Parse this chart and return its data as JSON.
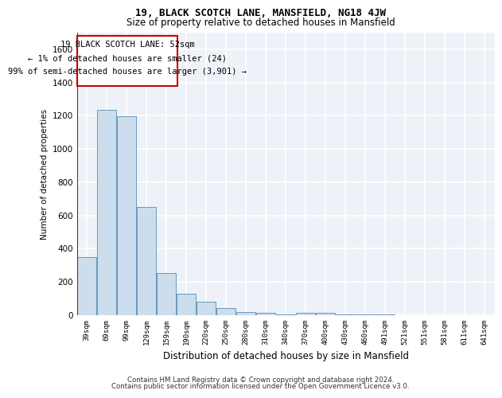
{
  "title1": "19, BLACK SCOTCH LANE, MANSFIELD, NG18 4JW",
  "title2": "Size of property relative to detached houses in Mansfield",
  "xlabel": "Distribution of detached houses by size in Mansfield",
  "ylabel": "Number of detached properties",
  "footer1": "Contains HM Land Registry data © Crown copyright and database right 2024.",
  "footer2": "Contains public sector information licensed under the Open Government Licence v3.0.",
  "annotation_line1": "19 BLACK SCOTCH LANE: 52sqm",
  "annotation_line2": "← 1% of detached houses are smaller (24)",
  "annotation_line3": "99% of semi-detached houses are larger (3,901) →",
  "bar_color": "#ccdded",
  "bar_edge_color": "#6699bb",
  "property_line_color": "#cc0000",
  "annotation_box_color": "#cc0000",
  "background_color": "#eef2f8",
  "grid_color": "#ffffff",
  "categories": [
    "39sqm",
    "69sqm",
    "99sqm",
    "129sqm",
    "159sqm",
    "190sqm",
    "220sqm",
    "250sqm",
    "280sqm",
    "310sqm",
    "340sqm",
    "370sqm",
    "400sqm",
    "430sqm",
    "460sqm",
    "491sqm",
    "521sqm",
    "551sqm",
    "581sqm",
    "611sqm",
    "641sqm"
  ],
  "values": [
    350,
    1235,
    1195,
    650,
    255,
    130,
    80,
    45,
    20,
    15,
    5,
    15,
    15,
    5,
    3,
    3,
    2,
    2,
    2,
    2,
    2
  ],
  "ylim": [
    0,
    1700
  ],
  "yticks": [
    0,
    200,
    400,
    600,
    800,
    1000,
    1200,
    1400,
    1600
  ]
}
